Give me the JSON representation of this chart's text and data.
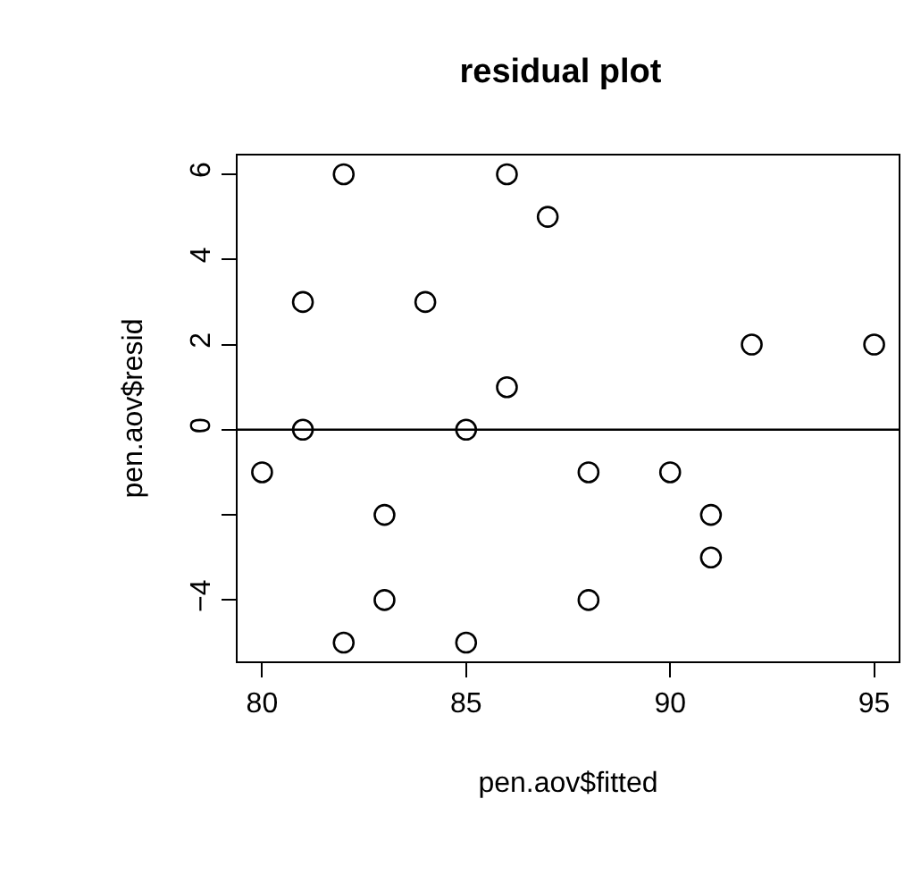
{
  "chart_data": {
    "type": "scatter",
    "title": "residual plot",
    "xlabel": "pen.aov$fitted",
    "ylabel": "pen.aov$resid",
    "x": [
      80,
      81,
      81,
      82,
      82,
      83,
      83,
      84,
      85,
      85,
      86,
      86,
      87,
      88,
      88,
      90,
      91,
      91,
      92,
      95
    ],
    "values": [
      -1,
      3,
      0,
      6,
      -5,
      -2,
      -4,
      3,
      0,
      -5,
      6,
      1,
      5,
      -1,
      -4,
      -1,
      -2,
      -3,
      2,
      2
    ],
    "color": "#000000",
    "marker": "circle",
    "xlim": [
      79.4,
      95.6
    ],
    "xticks": [
      80,
      85,
      90,
      95
    ],
    "ylim": [
      -5.44,
      6.44
    ],
    "yticks": [
      {
        "value": -4,
        "label": "−4"
      },
      {
        "value": -2,
        "label": null
      },
      0,
      2,
      4,
      6
    ],
    "ref_lines": [
      {
        "axis": "y",
        "value": 0,
        "color": "#000000"
      }
    ],
    "line_style": "none"
  }
}
